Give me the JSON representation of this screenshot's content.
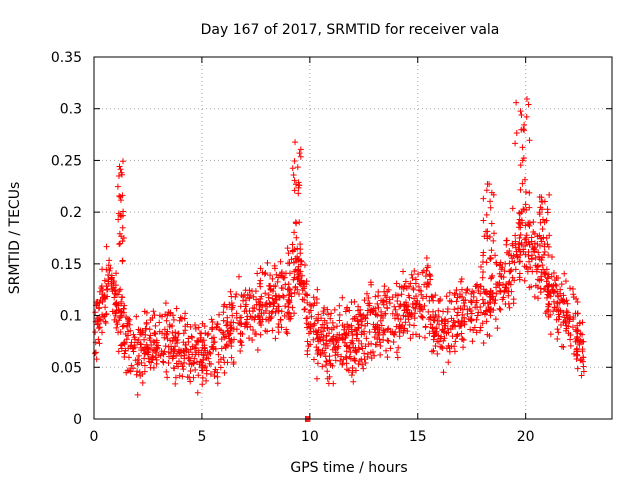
{
  "chart_data": {
    "type": "scatter",
    "title": "Day 167 of 2017, SRMTID for receiver vala",
    "xlabel": "GPS time / hours",
    "ylabel": "SRMTID / TECUs",
    "xlim": [
      0,
      24
    ],
    "ylim": [
      0,
      0.35
    ],
    "grid": true,
    "marker": "+",
    "series_color": "#ff0000",
    "x_ticks": [
      "0",
      "5",
      "10",
      "15",
      "20"
    ],
    "y_ticks": [
      "0",
      "0.05",
      "0.1",
      "0.15",
      "0.2",
      "0.25",
      "0.3",
      "0.35"
    ],
    "x_tick_values": [
      0,
      5,
      10,
      15,
      20
    ],
    "y_tick_values": [
      0,
      0.05,
      0.1,
      0.15,
      0.2,
      0.25,
      0.3,
      0.35
    ],
    "trend": {
      "x": [
        0,
        0.3,
        0.6,
        0.9,
        1.2,
        1.5,
        2,
        2.5,
        3,
        3.5,
        4,
        4.5,
        5,
        5.5,
        6,
        6.5,
        7,
        7.5,
        8,
        8.5,
        9,
        9.2,
        9.5,
        9.9,
        10.3,
        11,
        12,
        13,
        14,
        15,
        15.5,
        15.8,
        16.2,
        17,
        18,
        18.5,
        19,
        19.3,
        19.6,
        20,
        20.5,
        21,
        21.5,
        22,
        22.7
      ],
      "y": [
        0.085,
        0.11,
        0.13,
        0.12,
        0.11,
        0.075,
        0.06,
        0.07,
        0.075,
        0.08,
        0.07,
        0.06,
        0.06,
        0.065,
        0.08,
        0.095,
        0.1,
        0.105,
        0.11,
        0.115,
        0.12,
        0.13,
        0.15,
        0.1,
        0.08,
        0.075,
        0.08,
        0.09,
        0.1,
        0.115,
        0.12,
        0.08,
        0.085,
        0.1,
        0.11,
        0.12,
        0.13,
        0.145,
        0.16,
        0.17,
        0.16,
        0.13,
        0.11,
        0.1,
        0.06
      ],
      "spread": 0.035,
      "points_per_hour": 80
    },
    "spikes": [
      {
        "x_range": [
          1.1,
          1.4
        ],
        "y_range": [
          0.15,
          0.25
        ]
      },
      {
        "x_range": [
          9.2,
          9.6
        ],
        "y_range": [
          0.16,
          0.27
        ]
      },
      {
        "x_range": [
          18.0,
          18.6
        ],
        "y_range": [
          0.15,
          0.23
        ]
      },
      {
        "x_range": [
          19.3,
          20.2
        ],
        "y_range": [
          0.2,
          0.31
        ]
      },
      {
        "x_range": [
          20.6,
          21.1
        ],
        "y_range": [
          0.15,
          0.22
        ]
      }
    ],
    "zero_points": {
      "x": [
        9.8,
        9.85,
        9.9,
        9.95,
        10.0
      ],
      "y": [
        0,
        0,
        0,
        0,
        0
      ]
    }
  }
}
